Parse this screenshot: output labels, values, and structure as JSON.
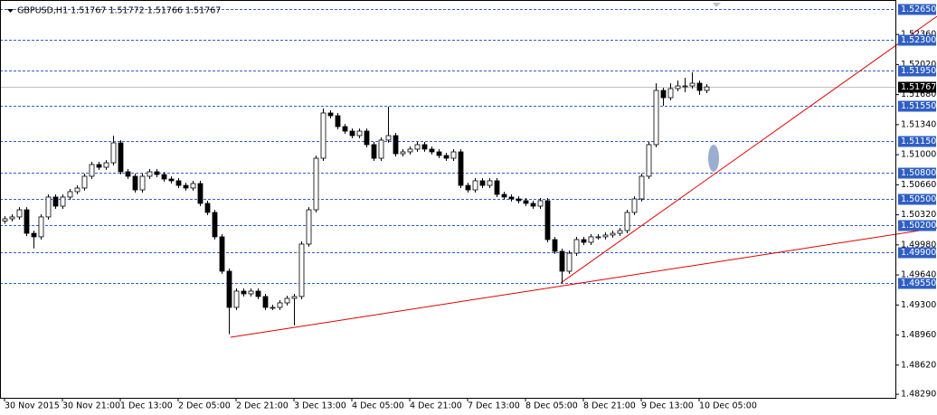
{
  "chart_data": {
    "type": "candlestick",
    "title": "GBPUSD,H1  1.51767 1.51772 1.51766 1.51767",
    "ylim": [
      1.4825,
      1.5275
    ],
    "yticks": [
      {
        "value": 1.5236,
        "label": "1.52360"
      },
      {
        "value": 1.5202,
        "label": "1.52020"
      },
      {
        "value": 1.5168,
        "label": "1.51680"
      },
      {
        "value": 1.5134,
        "label": "1.51340"
      },
      {
        "value": 1.51,
        "label": "1.51000"
      },
      {
        "value": 1.5066,
        "label": "1.50660"
      },
      {
        "value": 1.5032,
        "label": "1.50320"
      },
      {
        "value": 1.4998,
        "label": "1.49980"
      },
      {
        "value": 1.4964,
        "label": "1.49640"
      },
      {
        "value": 1.493,
        "label": "1.49300"
      },
      {
        "value": 1.4896,
        "label": "1.48960"
      },
      {
        "value": 1.4862,
        "label": "1.48620"
      },
      {
        "value": 1.4829,
        "label": "1.48290"
      }
    ],
    "levels": [
      {
        "value": 1.5265,
        "label": "1.52650"
      },
      {
        "value": 1.523,
        "label": "1.52300"
      },
      {
        "value": 1.5195,
        "label": "1.51950"
      },
      {
        "value": 1.5155,
        "label": "1.51550"
      },
      {
        "value": 1.5115,
        "label": "1.51150"
      },
      {
        "value": 1.508,
        "label": "1.50800"
      },
      {
        "value": 1.505,
        "label": "1.50500"
      },
      {
        "value": 1.502,
        "label": "1.50200"
      },
      {
        "value": 1.499,
        "label": "1.49900"
      },
      {
        "value": 1.4955,
        "label": "1.49550"
      }
    ],
    "level_color": "#2f5fc4",
    "current_price": {
      "value": 1.51767,
      "label": "1.51767"
    },
    "up_color": "#ffffff",
    "down_color": "#000000",
    "wick_color": "#000000",
    "categories": [
      "30 Nov 2015",
      null,
      null,
      null,
      null,
      null,
      null,
      null,
      "30 Nov 21:00",
      null,
      null,
      null,
      null,
      null,
      null,
      null,
      "1 Dec 13:00",
      null,
      null,
      null,
      null,
      null,
      null,
      null,
      "2 Dec 05:00",
      null,
      null,
      null,
      null,
      null,
      null,
      null,
      "2 Dec 21:00",
      null,
      null,
      null,
      null,
      null,
      null,
      null,
      "3 Dec 13:00",
      null,
      null,
      null,
      null,
      null,
      null,
      null,
      "4 Dec 05:00",
      null,
      null,
      null,
      null,
      null,
      null,
      null,
      "4 Dec 21:00",
      null,
      null,
      null,
      null,
      null,
      null,
      null,
      "7 Dec 13:00",
      null,
      null,
      null,
      null,
      null,
      null,
      null,
      "8 Dec 05:00",
      null,
      null,
      null,
      null,
      null,
      null,
      null,
      "8 Dec 21:00",
      null,
      null,
      null,
      null,
      null,
      null,
      null,
      "9 Dec 13:00",
      null,
      null,
      null,
      null,
      null,
      null,
      null,
      "10 Dec 05:00",
      null
    ],
    "ohlc": [
      [
        1.5025,
        1.50305,
        1.5022,
        1.50275
      ],
      [
        1.50275,
        1.50326,
        1.50245,
        1.50296
      ],
      [
        1.50296,
        1.50407,
        1.50266,
        1.50377
      ],
      [
        1.50377,
        1.50407,
        1.50081,
        1.50111
      ],
      [
        1.50111,
        1.50141,
        1.4994,
        1.50071
      ],
      [
        1.50071,
        1.50326,
        1.50041,
        1.50296
      ],
      [
        1.50296,
        1.50551,
        1.50266,
        1.50521
      ],
      [
        1.50521,
        1.50551,
        1.50388,
        1.50418
      ],
      [
        1.50418,
        1.50551,
        1.50388,
        1.50521
      ],
      [
        1.50521,
        1.50612,
        1.50491,
        1.50582
      ],
      [
        1.50582,
        1.50653,
        1.50552,
        1.50623
      ],
      [
        1.50623,
        1.50786,
        1.50593,
        1.50756
      ],
      [
        1.50756,
        1.50919,
        1.50726,
        1.50889
      ],
      [
        1.50889,
        1.50919,
        1.50828,
        1.50858
      ],
      [
        1.50858,
        1.50939,
        1.50828,
        1.50909
      ],
      [
        1.50909,
        1.51216,
        1.50879,
        1.51134
      ],
      [
        1.51134,
        1.51164,
        1.50777,
        1.50807
      ],
      [
        1.50807,
        1.50837,
        1.50726,
        1.50756
      ],
      [
        1.50756,
        1.50786,
        1.50572,
        1.50602
      ],
      [
        1.50602,
        1.50786,
        1.50572,
        1.50756
      ],
      [
        1.50756,
        1.50837,
        1.50726,
        1.50807
      ],
      [
        1.50807,
        1.50837,
        1.50746,
        1.50776
      ],
      [
        1.50776,
        1.50806,
        1.50695,
        1.50725
      ],
      [
        1.50725,
        1.50755,
        1.50675,
        1.50705
      ],
      [
        1.50705,
        1.50735,
        1.50623,
        1.50653
      ],
      [
        1.50653,
        1.50683,
        1.50593,
        1.50623
      ],
      [
        1.50623,
        1.50704,
        1.50593,
        1.50674
      ],
      [
        1.50674,
        1.50704,
        1.50419,
        1.50449
      ],
      [
        1.50449,
        1.50479,
        1.50317,
        1.50347
      ],
      [
        1.50347,
        1.50377,
        1.50041,
        1.50071
      ],
      [
        1.50071,
        1.50101,
        1.49652,
        1.49682
      ],
      [
        1.49682,
        1.49712,
        1.4897,
        1.49273
      ],
      [
        1.49273,
        1.49487,
        1.49243,
        1.49457
      ],
      [
        1.49457,
        1.49487,
        1.49396,
        1.49426
      ],
      [
        1.49426,
        1.49487,
        1.49396,
        1.49457
      ],
      [
        1.49457,
        1.49487,
        1.49366,
        1.49396
      ],
      [
        1.49396,
        1.49426,
        1.49243,
        1.49273
      ],
      [
        1.49273,
        1.49303,
        1.49243,
        1.49273
      ],
      [
        1.49273,
        1.49354,
        1.49243,
        1.49324
      ],
      [
        1.49324,
        1.49405,
        1.49294,
        1.49375
      ],
      [
        1.49375,
        1.49426,
        1.4907,
        1.49396
      ],
      [
        1.49396,
        1.50019,
        1.49366,
        1.49989
      ],
      [
        1.49989,
        1.50407,
        1.49959,
        1.50377
      ],
      [
        1.50377,
        1.5099,
        1.50347,
        1.5096
      ],
      [
        1.5096,
        1.51523,
        1.5093,
        1.51472
      ],
      [
        1.51472,
        1.51502,
        1.51411,
        1.51441
      ],
      [
        1.51441,
        1.51471,
        1.51288,
        1.51318
      ],
      [
        1.51318,
        1.51348,
        1.51237,
        1.51267
      ],
      [
        1.51267,
        1.51297,
        1.51186,
        1.51216
      ],
      [
        1.51216,
        1.51297,
        1.51186,
        1.51267
      ],
      [
        1.51267,
        1.51297,
        1.51084,
        1.51114
      ],
      [
        1.51114,
        1.51144,
        1.5093,
        1.5096
      ],
      [
        1.5096,
        1.51195,
        1.5093,
        1.51165
      ],
      [
        1.51165,
        1.51543,
        1.51135,
        1.51216
      ],
      [
        1.51216,
        1.51246,
        1.5098,
        1.51011
      ],
      [
        1.51011,
        1.51062,
        1.5098,
        1.51032
      ],
      [
        1.51032,
        1.51093,
        1.51002,
        1.51063
      ],
      [
        1.51063,
        1.51144,
        1.51033,
        1.51114
      ],
      [
        1.51114,
        1.51144,
        1.51033,
        1.51063
      ],
      [
        1.51063,
        1.51093,
        1.51002,
        1.51032
      ],
      [
        1.51032,
        1.51062,
        1.50961,
        1.50991
      ],
      [
        1.50991,
        1.51021,
        1.5093,
        1.5096
      ],
      [
        1.5096,
        1.51062,
        1.5093,
        1.51032
      ],
      [
        1.51032,
        1.51062,
        1.50623,
        1.50653
      ],
      [
        1.50653,
        1.50683,
        1.50572,
        1.50602
      ],
      [
        1.50602,
        1.50735,
        1.50572,
        1.50705
      ],
      [
        1.50705,
        1.50735,
        1.50623,
        1.50653
      ],
      [
        1.50653,
        1.50735,
        1.50623,
        1.50705
      ],
      [
        1.50705,
        1.50735,
        1.50521,
        1.50551
      ],
      [
        1.50551,
        1.50581,
        1.50491,
        1.50521
      ],
      [
        1.50521,
        1.50551,
        1.5047,
        1.505
      ],
      [
        1.505,
        1.5053,
        1.5045,
        1.5048
      ],
      [
        1.5048,
        1.5051,
        1.50419,
        1.50449
      ],
      [
        1.50449,
        1.50479,
        1.50388,
        1.50418
      ],
      [
        1.50418,
        1.5051,
        1.50388,
        1.5048
      ],
      [
        1.5048,
        1.5051,
        1.5001,
        1.5004
      ],
      [
        1.5004,
        1.5007,
        1.49877,
        1.49907
      ],
      [
        1.49907,
        1.49937,
        1.4955,
        1.49682
      ],
      [
        1.49682,
        1.49916,
        1.49652,
        1.49886
      ],
      [
        1.49886,
        1.5007,
        1.49856,
        1.5004
      ],
      [
        1.5004,
        1.5007,
        1.49979,
        1.50009
      ],
      [
        1.50009,
        1.50101,
        1.49979,
        1.50071
      ],
      [
        1.50071,
        1.50101,
        1.50041,
        1.50071
      ],
      [
        1.50071,
        1.50121,
        1.50041,
        1.50091
      ],
      [
        1.50091,
        1.50141,
        1.50061,
        1.50111
      ],
      [
        1.50111,
        1.50172,
        1.50081,
        1.50142
      ],
      [
        1.50142,
        1.50377,
        1.50112,
        1.50347
      ],
      [
        1.50347,
        1.5053,
        1.50317,
        1.505
      ],
      [
        1.505,
        1.50786,
        1.5047,
        1.50756
      ],
      [
        1.50756,
        1.51144,
        1.50726,
        1.51114
      ],
      [
        1.51114,
        1.51808,
        1.51084,
        1.51727
      ],
      [
        1.51727,
        1.51757,
        1.51553,
        1.51645
      ],
      [
        1.51645,
        1.51808,
        1.51615,
        1.51748
      ],
      [
        1.51748,
        1.51839,
        1.51718,
        1.51778
      ],
      [
        1.51778,
        1.51869,
        1.51707,
        1.51778
      ],
      [
        1.51778,
        1.51932,
        1.51748,
        1.51809
      ],
      [
        1.51809,
        1.51839,
        1.51676,
        1.51727
      ],
      [
        1.51727,
        1.51797,
        1.51697,
        1.51767
      ]
    ]
  }
}
